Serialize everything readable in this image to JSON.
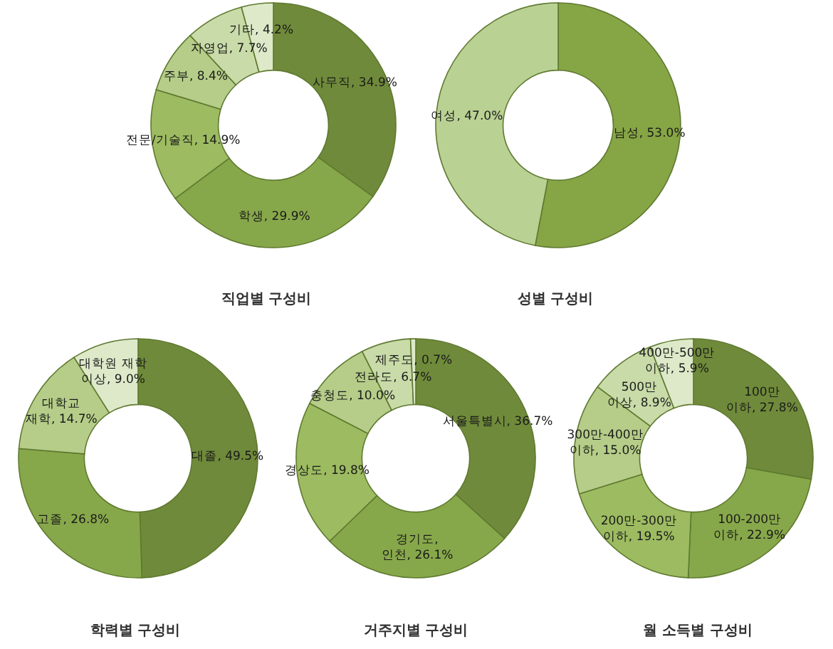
{
  "chart_data": [
    {
      "type": "donut",
      "title": "직업별 구성비",
      "categories": [
        "사무직",
        "학생",
        "전문/기술직",
        "주부",
        "자영업",
        "기타"
      ],
      "values": [
        34.9,
        29.9,
        14.9,
        8.4,
        7.7,
        4.2
      ],
      "value_labels": [
        "34.9%",
        "29.9%",
        "14.9%",
        "8.4%",
        "7.7%",
        "4.2%"
      ],
      "colors": [
        "#6f8a3a",
        "#87a84a",
        "#9dbb61",
        "#b5cd88",
        "#c8dba8",
        "#dde9c9"
      ]
    },
    {
      "type": "donut",
      "title": "성별 구성비",
      "categories": [
        "남성",
        "여성"
      ],
      "values": [
        53.0,
        47.0
      ],
      "value_labels": [
        "53.0%",
        "47.0%"
      ],
      "colors": [
        "#86a545",
        "#b9d193"
      ]
    },
    {
      "type": "donut",
      "title": "학력별 구성비",
      "categories": [
        "대졸",
        "고졸",
        "대학교 재학",
        "대학원 재학 이상"
      ],
      "values": [
        49.5,
        26.8,
        14.7,
        9.0
      ],
      "value_labels": [
        "49.5%",
        "26.8%",
        "14.7%",
        "9.0%"
      ],
      "colors": [
        "#6f8a3a",
        "#87a84a",
        "#b5cd88",
        "#dde9c9"
      ]
    },
    {
      "type": "donut",
      "title": "거주지별 구성비",
      "categories": [
        "서울특별시",
        "경기도, 인천",
        "경상도",
        "충청도",
        "전라도",
        "제주도"
      ],
      "values": [
        36.7,
        26.1,
        19.8,
        10.0,
        6.7,
        0.7
      ],
      "value_labels": [
        "36.7%",
        "26.1%",
        "19.8%",
        "10.0%",
        "6.7%",
        "0.7%"
      ],
      "colors": [
        "#6f8a3a",
        "#87a84a",
        "#9dbb61",
        "#b5cd88",
        "#c8dba8",
        "#dde9c9"
      ]
    },
    {
      "type": "donut",
      "title": "월 소득별 구성비",
      "categories": [
        "100만 이하",
        "100-200만 이하",
        "200만-300만 이하",
        "300만-400만 이하",
        "500만 이상",
        "400만-500만 이하"
      ],
      "values": [
        27.8,
        22.9,
        19.5,
        15.0,
        8.9,
        5.9
      ],
      "value_labels": [
        "27.8%",
        "22.9%",
        "19.5%",
        "15.0%",
        "8.9%",
        "5.9%"
      ],
      "colors": [
        "#6f8a3a",
        "#87a84a",
        "#9dbb61",
        "#b5cd88",
        "#c8dba8",
        "#dde9c9"
      ]
    }
  ]
}
